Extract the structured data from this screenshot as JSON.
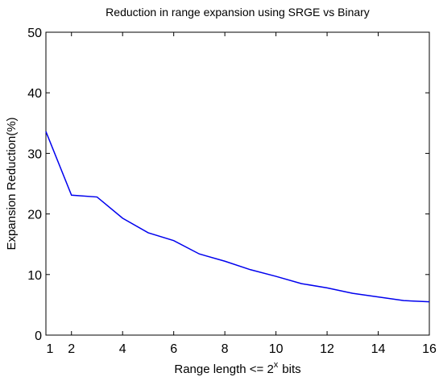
{
  "chart_data": {
    "type": "line",
    "title": "Reduction in range expansion using SRGE vs Binary",
    "xlabel": {
      "base": "Range length <= 2",
      "superscript": "x",
      "suffix": "bits"
    },
    "ylabel": "Expansion Reduction(%)",
    "x": [
      1,
      2,
      3,
      4,
      5,
      6,
      7,
      8,
      9,
      10,
      11,
      12,
      13,
      14,
      15,
      16
    ],
    "series": [
      {
        "color": "#0000ee",
        "values": [
          33.6,
          23.1,
          22.8,
          19.3,
          16.9,
          15.6,
          13.4,
          12.2,
          10.8,
          9.7,
          8.5,
          7.8,
          6.9,
          6.3,
          5.7,
          5.5
        ]
      }
    ],
    "xlim": [
      1,
      16
    ],
    "xticks": [
      1,
      2,
      4,
      6,
      8,
      10,
      12,
      14,
      16
    ],
    "ylim": [
      0,
      50
    ],
    "yticks": [
      0,
      10,
      20,
      30,
      40,
      50
    ],
    "grid": false
  }
}
